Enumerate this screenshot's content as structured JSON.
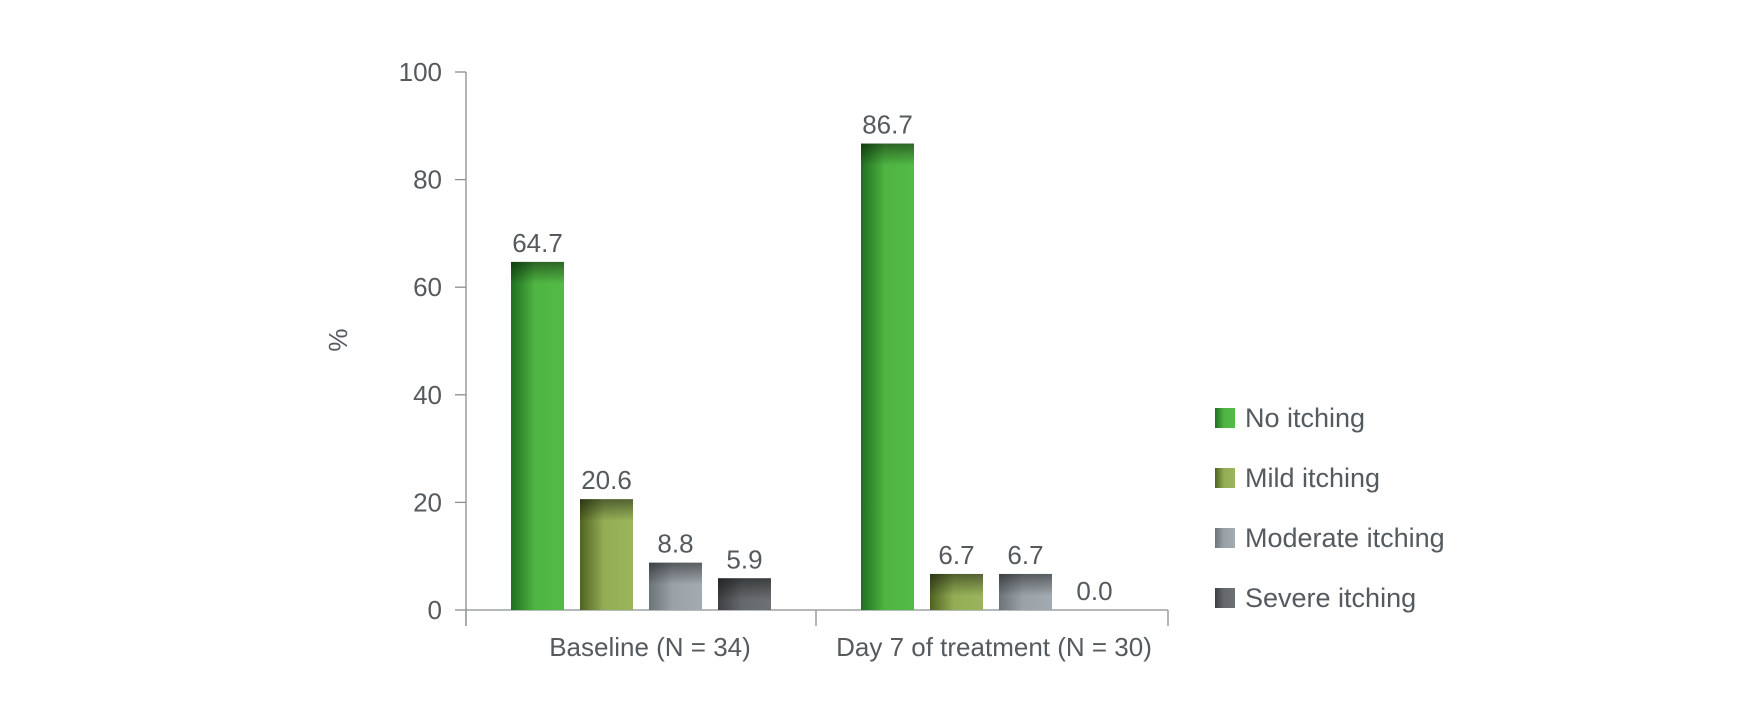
{
  "chart_data": {
    "type": "bar",
    "ylabel": "%",
    "xlabel": "",
    "ylim": [
      0,
      100
    ],
    "yticks": [
      0,
      20,
      40,
      60,
      80,
      100
    ],
    "categories": [
      "Baseline (N = 34)",
      "Day 7 of treatment (N = 30)"
    ],
    "series": [
      {
        "name": "No itching",
        "color": "#4caf3e",
        "values": [
          64.7,
          86.7
        ],
        "labels": [
          "64.7",
          "86.7"
        ]
      },
      {
        "name": "Mild itching",
        "color": "#8fa84e",
        "values": [
          20.6,
          6.7
        ],
        "labels": [
          "20.6",
          "6.7"
        ]
      },
      {
        "name": "Moderate itching",
        "color": "#8e969c",
        "values": [
          8.8,
          6.7
        ],
        "labels": [
          "8.8",
          "6.7"
        ]
      },
      {
        "name": "Severe itching",
        "color": "#5e6164",
        "values": [
          5.9,
          0.0
        ],
        "labels": [
          "5.9",
          "0.0"
        ]
      }
    ],
    "legend_position": "right",
    "grid": false
  }
}
